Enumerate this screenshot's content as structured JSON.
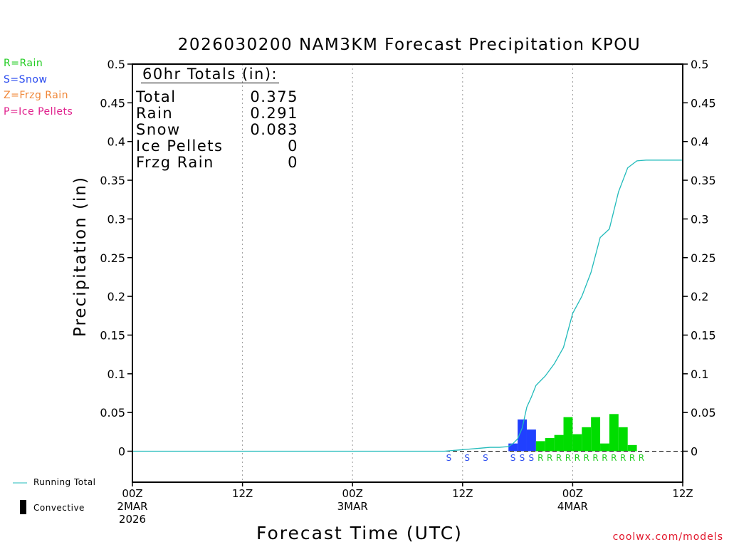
{
  "title": "2026030200 NAM3KM Forecast Precipitation KPOU",
  "legend": [
    {
      "text": "R=Rain",
      "color": "#22cc22"
    },
    {
      "text": "S=Snow",
      "color": "#2a4bef"
    },
    {
      "text": "Z=Frzg Rain",
      "color": "#f0883a"
    },
    {
      "text": "P=Ice Pellets",
      "color": "#e0208c"
    }
  ],
  "bottom_legend": {
    "running_total": "Running Total",
    "convective": "Convective"
  },
  "credit": "coolwx.com/models",
  "totals": {
    "header": "60hr Totals (in):",
    "rows": [
      {
        "label": "Total",
        "value": "0.375"
      },
      {
        "label": "Rain",
        "value": "0.291"
      },
      {
        "label": "Snow",
        "value": "0.083"
      },
      {
        "label": "Ice Pellets",
        "value": "0"
      },
      {
        "label": "Frzg Rain",
        "value": "0"
      }
    ]
  },
  "chart_data": {
    "type": "bar",
    "title": "2026030200 NAM3KM Forecast Precipitation KPOU",
    "xlabel": "Forecast Time (UTC)",
    "ylabel": "Precipitation (in)",
    "xlim": [
      0,
      60
    ],
    "ylim": [
      -0.04,
      0.5
    ],
    "yticks": [
      0,
      0.05,
      0.1,
      0.15,
      0.2,
      0.25,
      0.3,
      0.35,
      0.4,
      0.45,
      0.5
    ],
    "ytick_labels": [
      "0",
      "0.05",
      "0.1",
      "0.15",
      "0.2",
      "0.25",
      "0.3",
      "0.35",
      "0.4",
      "0.45",
      "0.5"
    ],
    "xticks": [
      {
        "hour": 0,
        "lines": [
          "00Z",
          "2MAR",
          "2026"
        ]
      },
      {
        "hour": 12,
        "lines": [
          "12Z"
        ]
      },
      {
        "hour": 24,
        "lines": [
          "00Z",
          "3MAR"
        ]
      },
      {
        "hour": 36,
        "lines": [
          "12Z"
        ]
      },
      {
        "hour": 48,
        "lines": [
          "00Z",
          "4MAR"
        ]
      },
      {
        "hour": 60,
        "lines": [
          "12Z"
        ]
      }
    ],
    "grid": "vertical dotted at 12Z intervals",
    "bars": [
      {
        "hour": 42,
        "value": 0.01,
        "type": "snow"
      },
      {
        "hour": 43,
        "value": 0.041,
        "type": "snow"
      },
      {
        "hour": 44,
        "value": 0.028,
        "type": "snow"
      },
      {
        "hour": 45,
        "value": 0.013,
        "type": "rain"
      },
      {
        "hour": 46,
        "value": 0.017,
        "type": "rain"
      },
      {
        "hour": 47,
        "value": 0.021,
        "type": "rain"
      },
      {
        "hour": 48,
        "value": 0.044,
        "type": "rain"
      },
      {
        "hour": 49,
        "value": 0.022,
        "type": "rain"
      },
      {
        "hour": 50,
        "value": 0.031,
        "type": "rain"
      },
      {
        "hour": 51,
        "value": 0.044,
        "type": "rain"
      },
      {
        "hour": 52,
        "value": 0.01,
        "type": "rain"
      },
      {
        "hour": 53,
        "value": 0.048,
        "type": "rain"
      },
      {
        "hour": 54,
        "value": 0.031,
        "type": "rain"
      },
      {
        "hour": 55,
        "value": 0.008,
        "type": "rain"
      }
    ],
    "ptype_markers": [
      {
        "hour": 35,
        "label": "S"
      },
      {
        "hour": 37,
        "label": "S"
      },
      {
        "hour": 39,
        "label": "S"
      },
      {
        "hour": 42,
        "label": "S"
      },
      {
        "hour": 43,
        "label": "S"
      },
      {
        "hour": 44,
        "label": "S"
      },
      {
        "hour": 45,
        "label": "R"
      },
      {
        "hour": 46,
        "label": "R"
      },
      {
        "hour": 47,
        "label": "R"
      },
      {
        "hour": 48,
        "label": "R"
      },
      {
        "hour": 49,
        "label": "R"
      },
      {
        "hour": 50,
        "label": "R"
      },
      {
        "hour": 51,
        "label": "R"
      },
      {
        "hour": 52,
        "label": "R"
      },
      {
        "hour": 53,
        "label": "R"
      },
      {
        "hour": 54,
        "label": "R"
      },
      {
        "hour": 55,
        "label": "R"
      },
      {
        "hour": 56,
        "label": "R"
      }
    ],
    "running_total": {
      "name": "Running Total",
      "x": [
        0,
        34,
        35,
        36,
        37,
        38,
        39,
        40,
        41,
        41.5,
        42,
        42.5,
        43,
        43.5,
        44,
        45,
        46,
        47,
        48,
        49,
        50,
        51,
        52,
        53,
        54,
        55,
        56,
        57,
        58,
        60
      ],
      "y": [
        0,
        0,
        0.001,
        0.002,
        0.003,
        0.004,
        0.005,
        0.005,
        0.006,
        0.01,
        0.016,
        0.03,
        0.057,
        0.07,
        0.085,
        0.097,
        0.113,
        0.134,
        0.178,
        0.2,
        0.231,
        0.276,
        0.287,
        0.335,
        0.366,
        0.375,
        0.376,
        0.376,
        0.376,
        0.376
      ]
    },
    "colors": {
      "rain": "#00dd00",
      "snow": "#2040ff",
      "running_total": "#22bbbb",
      "rain_marker": "#22cc22",
      "snow_marker": "#2a4bef"
    }
  }
}
